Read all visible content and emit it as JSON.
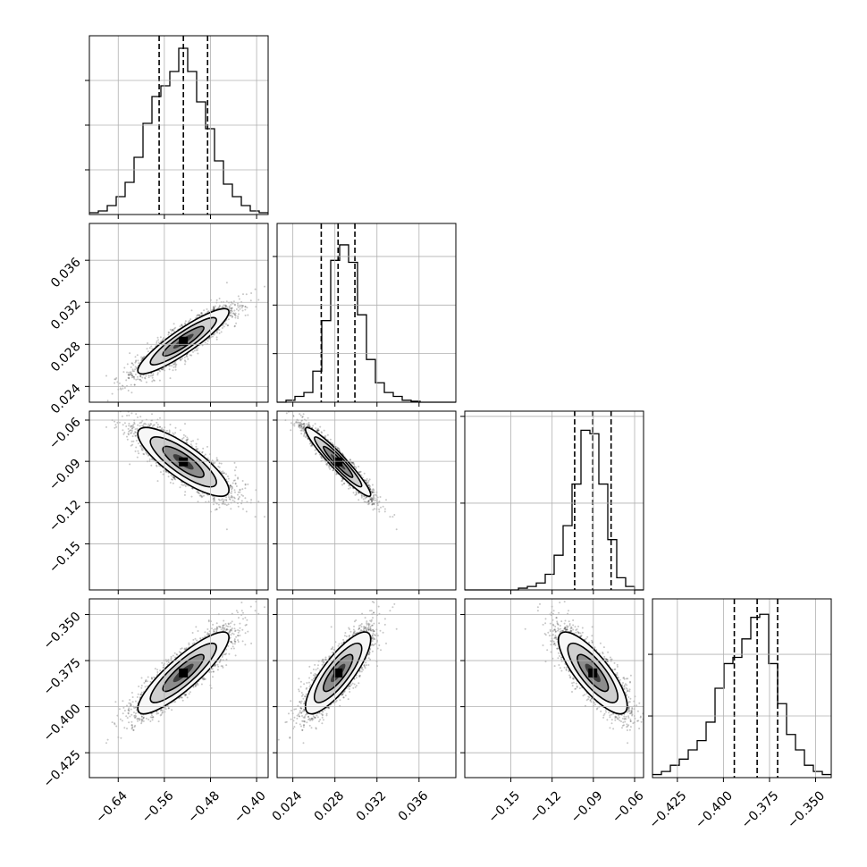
{
  "chart_data": {
    "type": "corner",
    "variables": [
      {
        "range": [
          -0.69,
          -0.38
        ],
        "ticks": [
          -0.64,
          -0.56,
          -0.48,
          -0.4
        ],
        "tick_labels": [
          "−0.64",
          "−0.56",
          "−0.48",
          "−0.40"
        ],
        "quantiles": [
          -0.569,
          -0.527,
          -0.485
        ],
        "hist_values": [
          1,
          2,
          5,
          10,
          18,
          32,
          51,
          66,
          72,
          80,
          93,
          80,
          63,
          48,
          30,
          17,
          10,
          5,
          2,
          1
        ],
        "hist_max": 100
      },
      {
        "range": [
          0.0225,
          0.0395
        ],
        "ticks": [
          0.024,
          0.028,
          0.032,
          0.036
        ],
        "tick_labels": [
          "0.024",
          "0.028",
          "0.032",
          "0.036"
        ],
        "quantiles": [
          0.0267,
          0.0283,
          0.0299
        ],
        "hist_values": [
          0,
          1,
          3,
          5,
          16,
          42,
          73,
          81,
          72,
          45,
          22,
          10,
          5,
          3,
          1,
          0.5,
          0,
          0,
          0,
          0
        ],
        "hist_max": 92
      },
      {
        "range": [
          -0.1835,
          -0.0535
        ],
        "ticks": [
          -0.15,
          -0.12,
          -0.09,
          -0.06
        ],
        "tick_labels": [
          "−0.15",
          "−0.12",
          "−0.09",
          "−0.06"
        ],
        "quantiles": [
          -0.1036,
          -0.0904,
          -0.0771
        ],
        "hist_values": [
          0,
          0,
          0,
          0,
          0,
          0,
          1,
          2,
          4,
          9,
          20,
          37,
          61,
          92,
          90,
          61,
          29,
          7,
          2,
          0
        ],
        "hist_max": 103
      },
      {
        "range": [
          -0.4385,
          -0.3415
        ],
        "ticks": [
          -0.425,
          -0.4,
          -0.375,
          -0.35
        ],
        "tick_labels": [
          "−0.425",
          "−0.400",
          "−0.375",
          "−0.350"
        ],
        "quantiles": [
          -0.3941,
          -0.3817,
          -0.3706
        ],
        "hist_values": [
          1,
          2,
          4,
          6,
          9,
          12,
          18,
          29,
          37,
          39,
          45,
          52,
          53,
          37,
          24,
          14,
          9,
          4,
          2,
          1
        ],
        "hist_max": 58
      }
    ],
    "means": [
      -0.527,
      0.0283,
      -0.0904,
      -0.3817
    ],
    "stds": [
      0.0395,
      0.00155,
      0.0125,
      0.0111
    ],
    "correlations": [
      [
        1,
        0.9,
        -0.82,
        0.87
      ],
      [
        0.9,
        1,
        -0.95,
        0.82
      ],
      [
        -0.82,
        -0.95,
        1,
        -0.8
      ],
      [
        0.87,
        0.82,
        -0.8,
        1
      ]
    ],
    "grid": true,
    "quantile_lines": true
  }
}
